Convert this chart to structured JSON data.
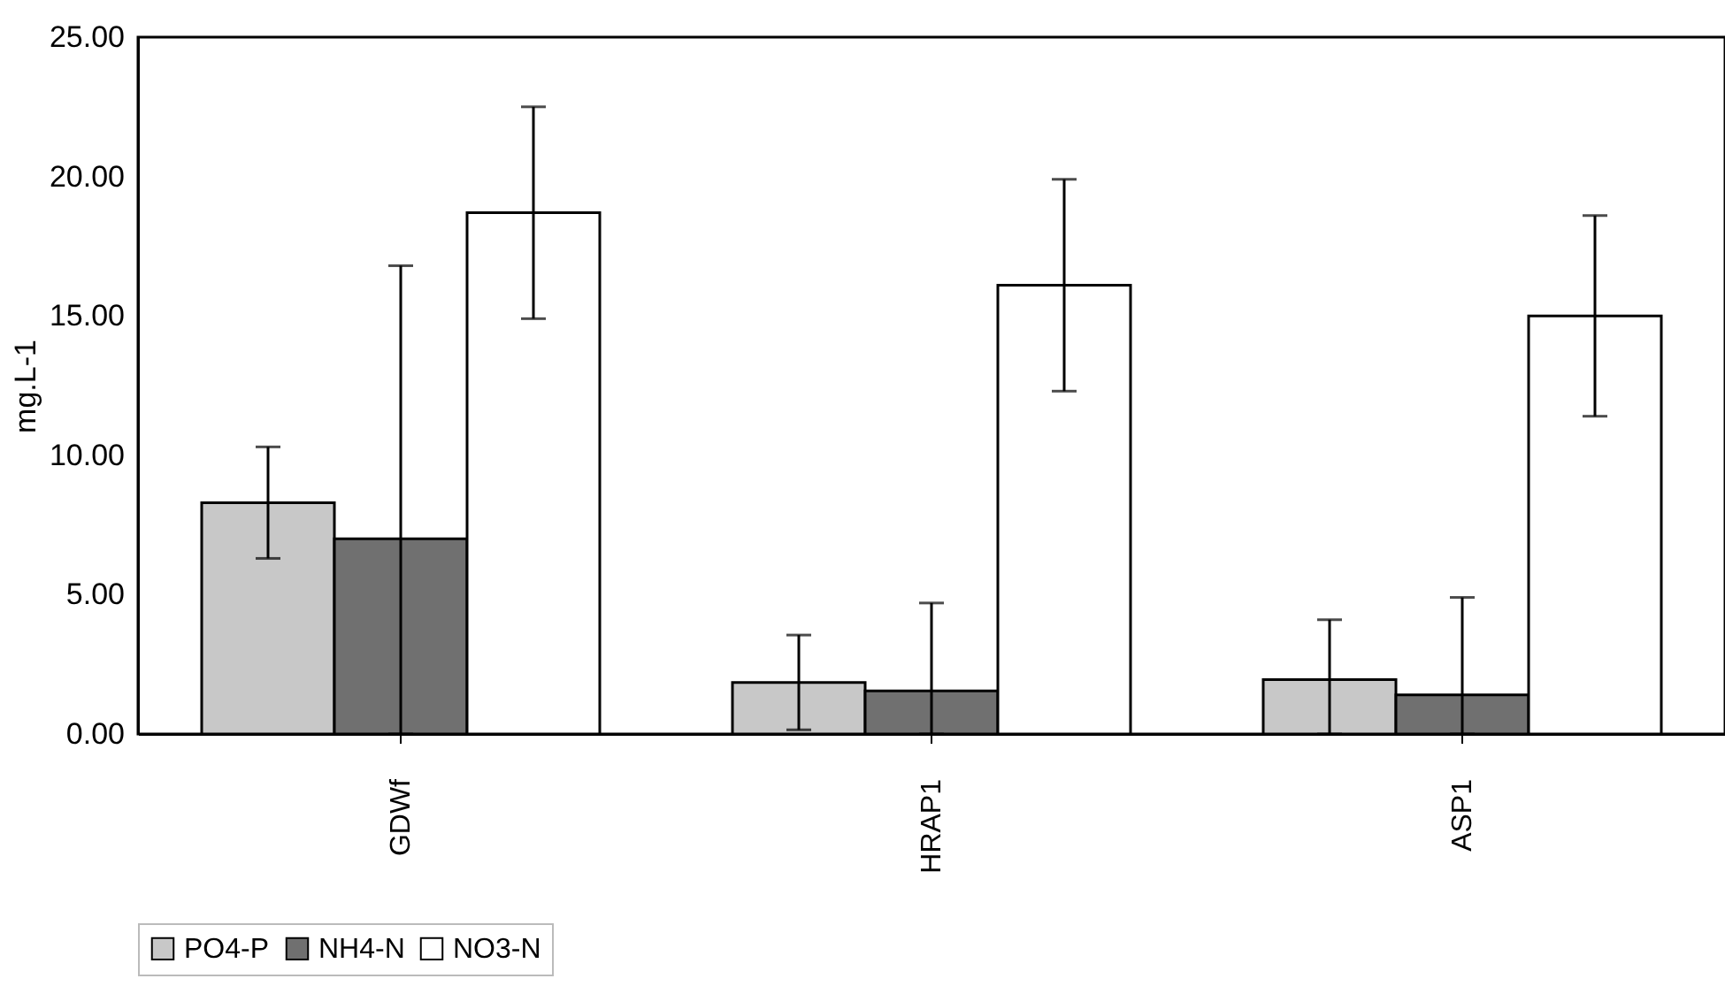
{
  "chart_data": {
    "type": "bar",
    "ylabel": "mg.L-1",
    "categories": [
      "GDWf",
      "HRAP1",
      "ASP1"
    ],
    "ylim": [
      0,
      25
    ],
    "yticks": [
      {
        "value": 0,
        "label": "0.00"
      },
      {
        "value": 5,
        "label": "5.00"
      },
      {
        "value": 10,
        "label": "10.00"
      },
      {
        "value": 15,
        "label": "15.00"
      },
      {
        "value": 20,
        "label": "20.00"
      },
      {
        "value": 25,
        "label": "25.00"
      }
    ],
    "grid": false,
    "legend": "bottom",
    "series": [
      {
        "name": "PO4-P",
        "color": "#c8c8c8",
        "values": [
          8.3,
          1.85,
          1.95
        ],
        "errors": [
          2.0,
          1.7,
          [
            0,
            4.1
          ]
        ]
      },
      {
        "name": "NH4-N",
        "color": "#707070",
        "values": [
          7.0,
          1.55,
          1.4
        ],
        "errors": [
          [
            0,
            16.8
          ],
          [
            0,
            4.7
          ],
          [
            0,
            4.9
          ]
        ]
      },
      {
        "name": "NO3-N",
        "color": "#ffffff",
        "values": [
          18.7,
          16.1,
          15.0
        ],
        "errors": [
          3.8,
          3.8,
          3.6
        ]
      }
    ]
  }
}
